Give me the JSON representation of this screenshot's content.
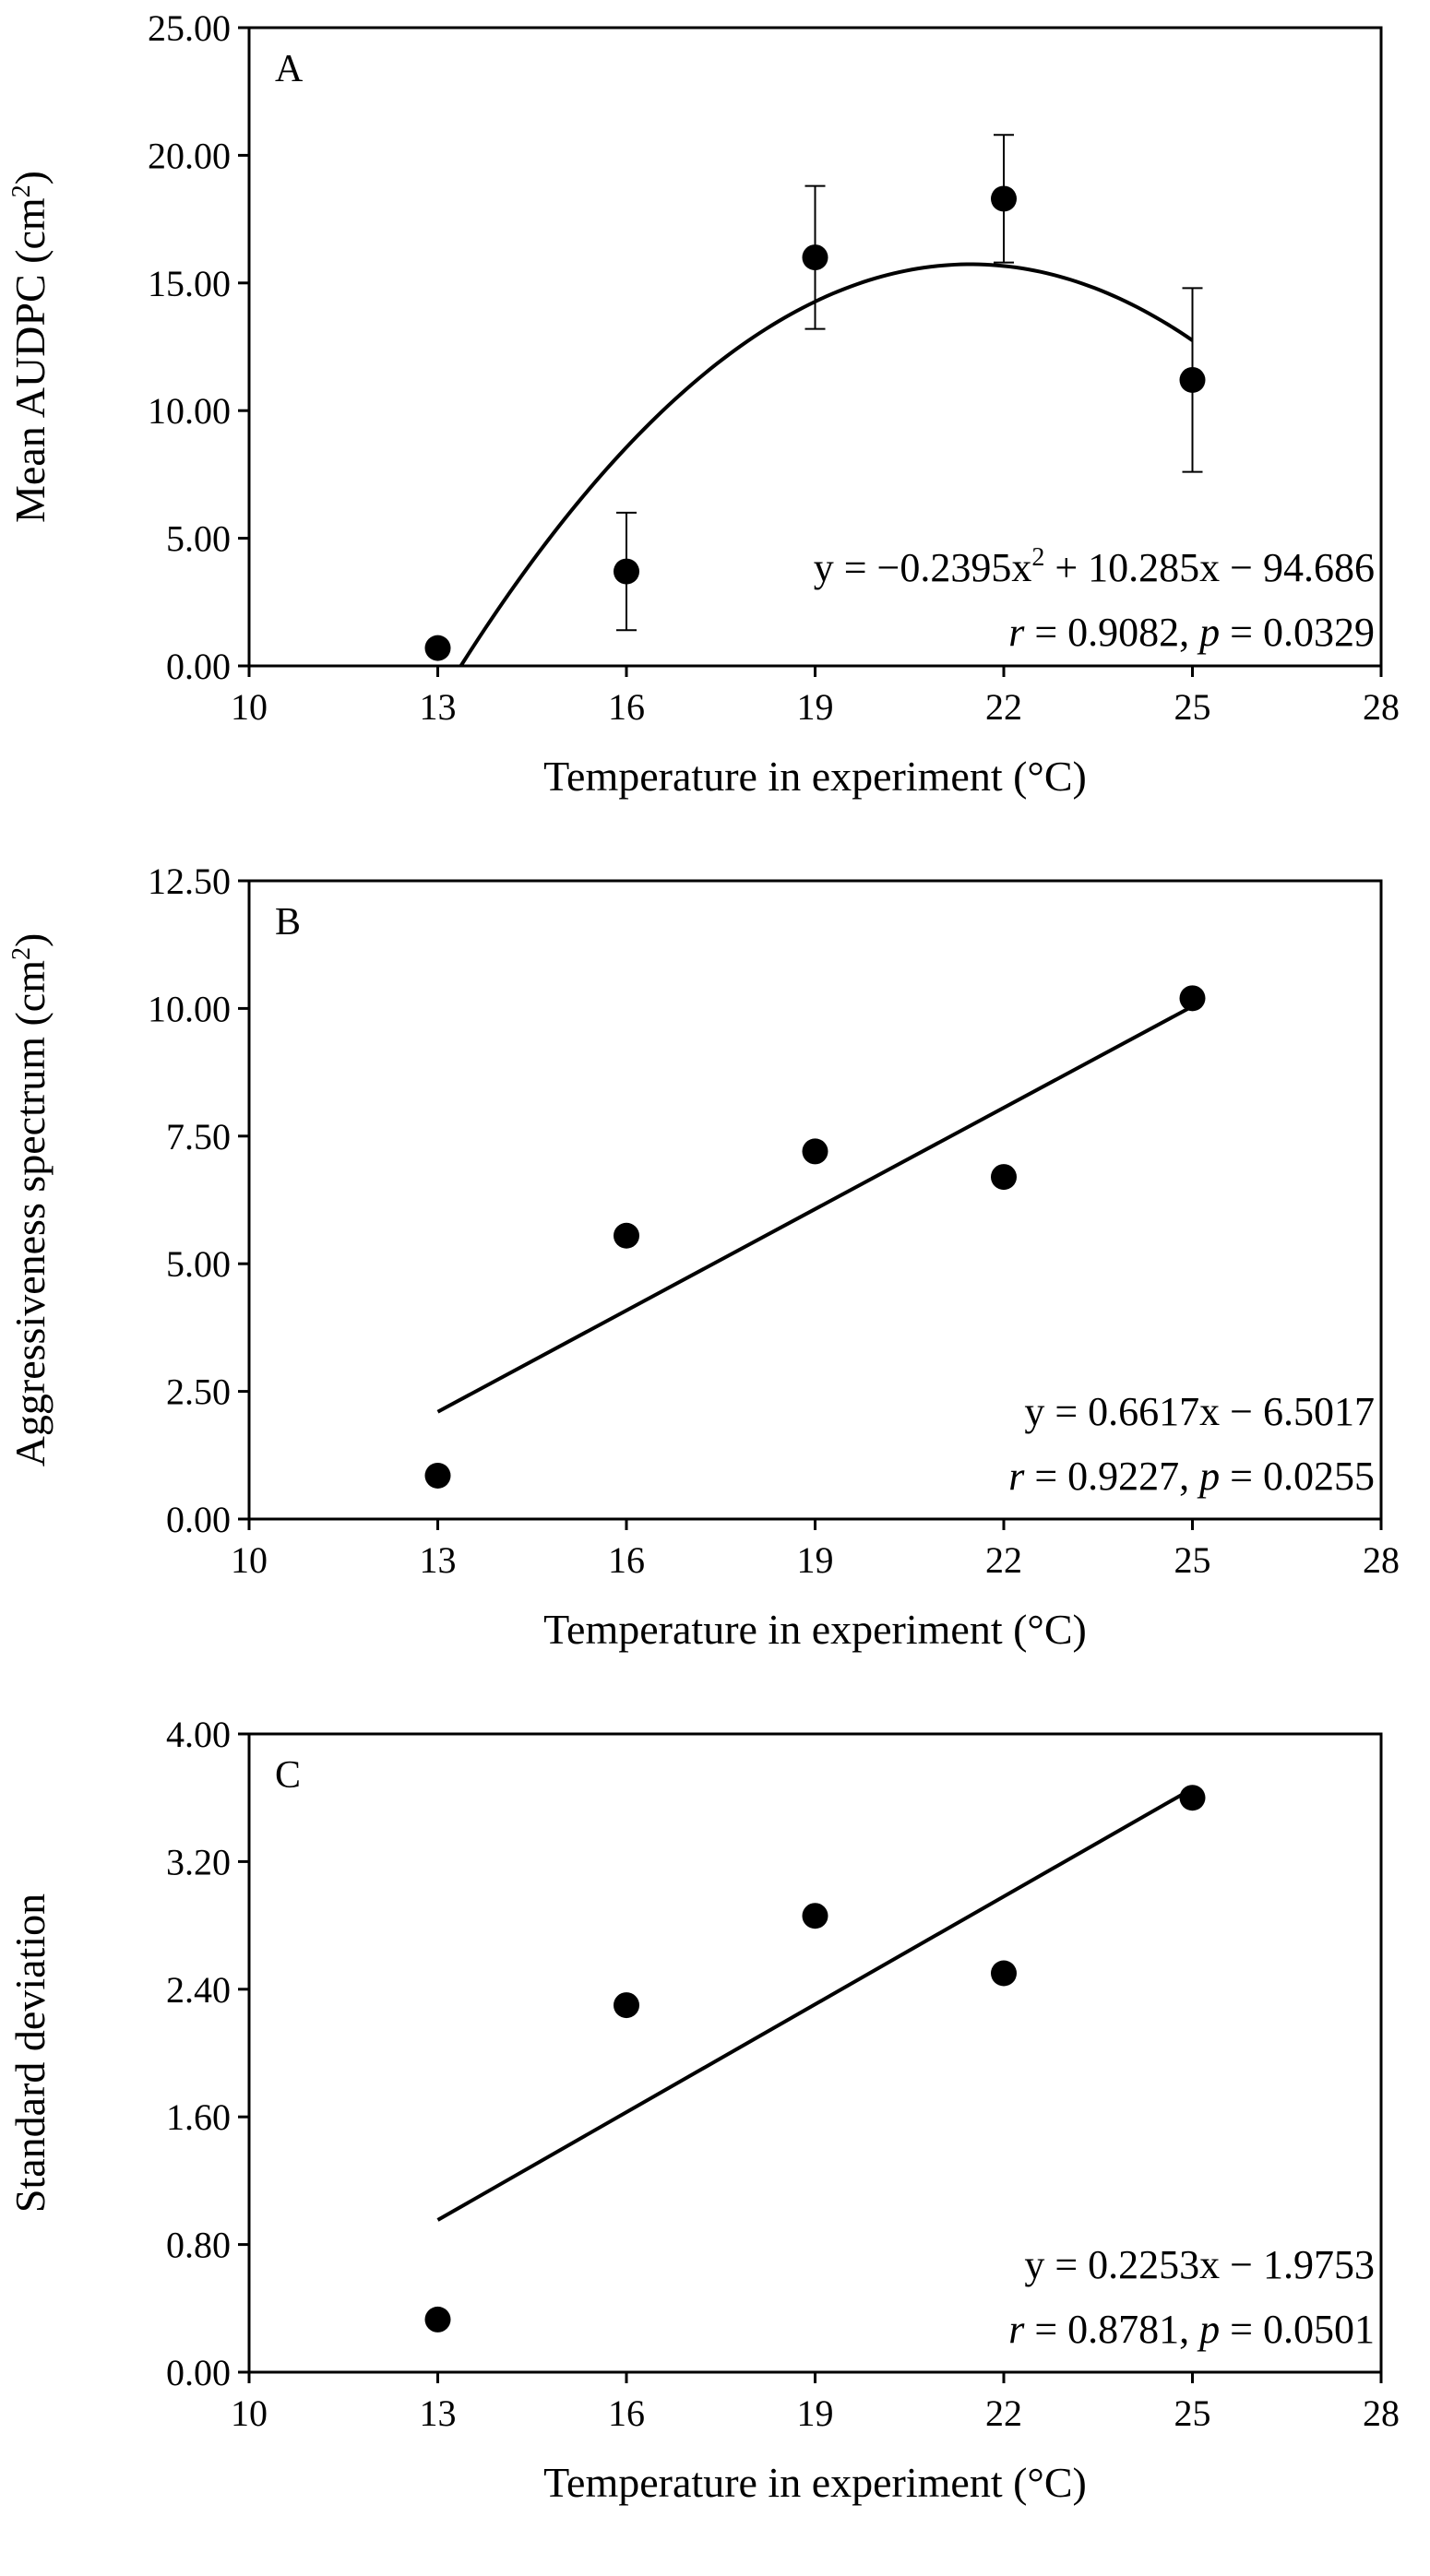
{
  "chart_data": [
    {
      "type": "scatter",
      "panel": "A",
      "title": "",
      "xlabel": "Temperature in experiment (°C)",
      "ylabel": {
        "main": "Mean AUDPC (cm",
        "sup": "2",
        "end": ")"
      },
      "xlim": [
        10,
        28
      ],
      "ylim": [
        0,
        25
      ],
      "xticks": [
        10,
        13,
        16,
        19,
        22,
        25,
        28
      ],
      "yticks": [
        "0.00",
        "5.00",
        "10.00",
        "15.00",
        "20.00",
        "25.00"
      ],
      "x": [
        13,
        16,
        19,
        22,
        25
      ],
      "y": [
        0.7,
        3.7,
        16.0,
        18.3,
        11.2
      ],
      "error": [
        0,
        2.3,
        2.8,
        2.5,
        3.6
      ],
      "fit": {
        "kind": "quadratic",
        "a": -0.2395,
        "b": 10.285,
        "c": -94.686,
        "x_range": [
          13.0,
          25.0
        ]
      },
      "equation": {
        "text1": "y = −0.2395x",
        "sup": "2",
        "text2": " + 10.285x − 94.686"
      },
      "stats": {
        "r_label": "r",
        "r_value": " = 0.9082, ",
        "p_label": "p",
        "p_value": " = 0.0329"
      },
      "grid": false
    },
    {
      "type": "scatter",
      "panel": "B",
      "title": "",
      "xlabel": "Temperature in experiment (°C)",
      "ylabel": {
        "main": "Aggressiveness spectrum (cm",
        "sup": "2",
        "end": ")"
      },
      "xlim": [
        10,
        28
      ],
      "ylim": [
        0,
        12.5
      ],
      "xticks": [
        10,
        13,
        16,
        19,
        22,
        25,
        28
      ],
      "yticks": [
        "0.00",
        "2.50",
        "5.00",
        "7.50",
        "10.00",
        "12.50"
      ],
      "x": [
        13,
        16,
        19,
        22,
        25
      ],
      "y": [
        0.85,
        5.55,
        7.2,
        6.7,
        10.2
      ],
      "fit": {
        "kind": "linear",
        "slope": 0.6617,
        "intercept": -6.5017,
        "x_range": [
          13,
          25
        ]
      },
      "equation": {
        "text1": "y = 0.6617x − 6.5017",
        "sup": "",
        "text2": ""
      },
      "stats": {
        "r_label": "r",
        "r_value": " = 0.9227, ",
        "p_label": "p",
        "p_value": " = 0.0255"
      },
      "grid": false
    },
    {
      "type": "scatter",
      "panel": "C",
      "title": "",
      "xlabel": "Temperature in experiment (°C)",
      "ylabel": {
        "main": "Standard deviation",
        "sup": "",
        "end": ""
      },
      "xlim": [
        10,
        28
      ],
      "ylim": [
        0,
        4
      ],
      "xticks": [
        10,
        13,
        16,
        19,
        22,
        25,
        28
      ],
      "yticks": [
        "0.00",
        "0.80",
        "1.60",
        "2.40",
        "3.20",
        "4.00"
      ],
      "x": [
        13,
        16,
        19,
        22,
        25
      ],
      "y": [
        0.33,
        2.3,
        2.86,
        2.5,
        3.6
      ],
      "fit": {
        "kind": "linear",
        "slope": 0.2253,
        "intercept": -1.9753,
        "x_range": [
          13,
          25
        ]
      },
      "equation": {
        "text1": "y = 0.2253x − 1.9753",
        "sup": "",
        "text2": ""
      },
      "stats": {
        "r_label": "r",
        "r_value": " = 0.8781, ",
        "p_label": "p",
        "p_value": " = 0.0501"
      },
      "grid": false
    }
  ]
}
